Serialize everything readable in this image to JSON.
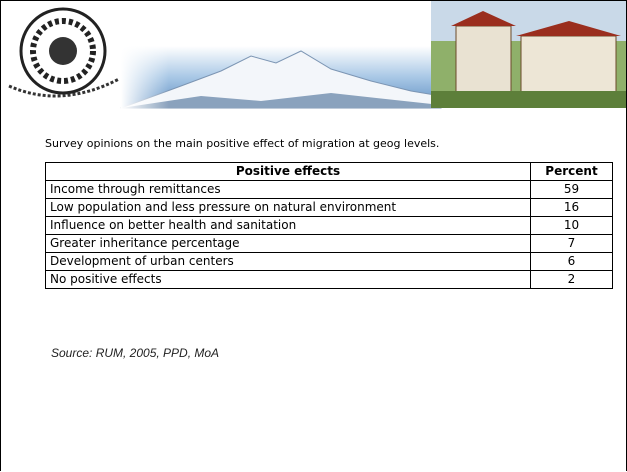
{
  "caption": "Survey opinions on the main positive effect of migration at geog levels.",
  "table": {
    "header": [
      "Positive effects",
      "Percent"
    ],
    "rows": [
      [
        "Income through remittances",
        59
      ],
      [
        "Low population and less pressure on natural environment",
        16
      ],
      [
        "Influence on better health and sanitation",
        10
      ],
      [
        "Greater inheritance percentage",
        7
      ],
      [
        "Development of urban centers",
        6
      ],
      [
        "No positive effects",
        2
      ]
    ]
  },
  "source": "Source: RUM, 2005, PPD, MoA"
}
